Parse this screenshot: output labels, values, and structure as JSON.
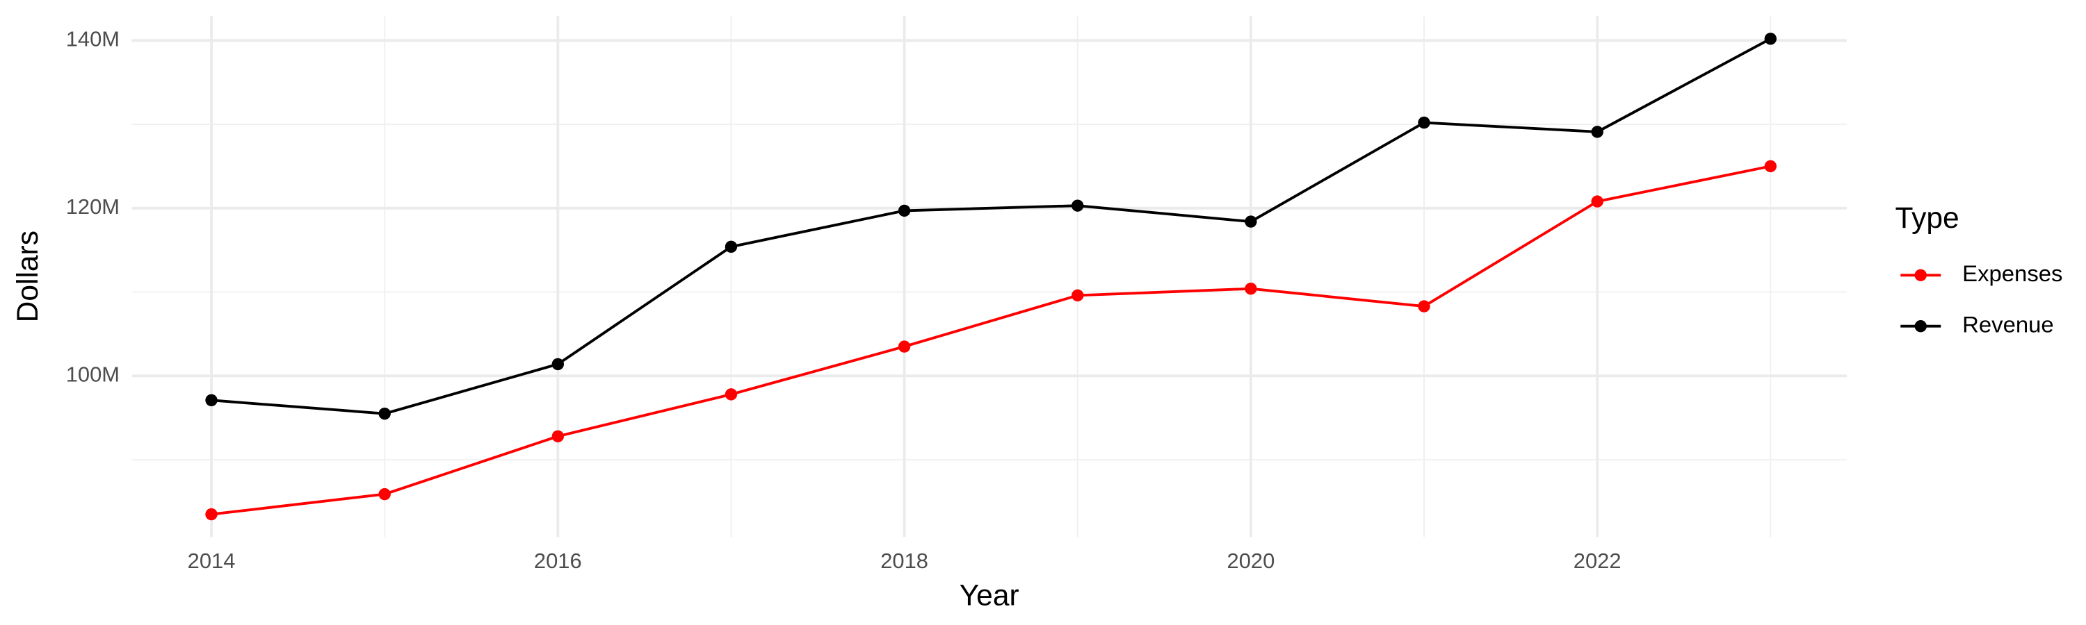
{
  "chart_data": {
    "type": "line",
    "x_label": "Year",
    "y_label": "Dollars",
    "legend_title": "Type",
    "legend_position": "right",
    "grid": true,
    "x": [
      2014,
      2015,
      2016,
      2017,
      2018,
      2019,
      2020,
      2021,
      2022,
      2023
    ],
    "series": [
      {
        "name": "Expenses",
        "color": "#ff0000",
        "values": [
          83500000,
          85900000,
          92800000,
          97800000,
          103500000,
          109600000,
          110400000,
          108300000,
          120800000,
          125000000
        ]
      },
      {
        "name": "Revenue",
        "color": "#000000",
        "values": [
          97100000,
          95500000,
          101400000,
          115400000,
          119700000,
          120300000,
          118400000,
          130200000,
          129100000,
          140200000
        ]
      }
    ],
    "xlim": [
      2013.54,
      2023.44
    ],
    "xticks": [
      2014,
      2016,
      2018,
      2020,
      2022
    ],
    "ylim": [
      80800000,
      142900000
    ],
    "yticks": [
      {
        "value": 100000000,
        "label": "100M"
      },
      {
        "value": 120000000,
        "label": "120M"
      },
      {
        "value": 140000000,
        "label": "140M"
      }
    ]
  }
}
